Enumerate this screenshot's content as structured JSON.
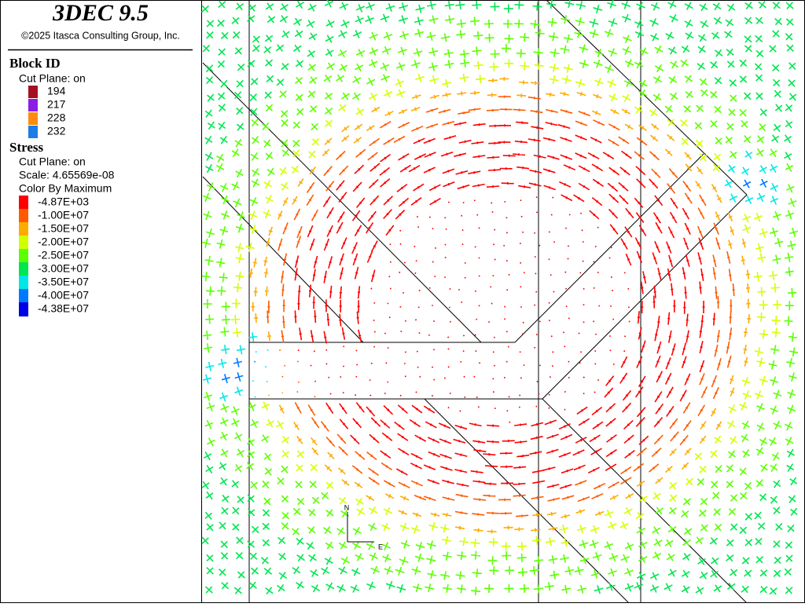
{
  "header": {
    "title": "3DEC 9.5",
    "copyright": "©2025 Itasca Consulting Group, Inc."
  },
  "block_id": {
    "title": "Block  ID",
    "subtitle": "Cut Plane: on",
    "items": [
      {
        "label": "194",
        "color": "#a50f23"
      },
      {
        "label": "217",
        "color": "#8a1ee6"
      },
      {
        "label": "228",
        "color": "#ff8a10"
      },
      {
        "label": "232",
        "color": "#1a7ee6"
      }
    ]
  },
  "stress": {
    "title": "Stress",
    "lines": [
      "Cut Plane: on",
      "Scale: 4.65569e-08",
      "Color By Maximum"
    ],
    "items": [
      {
        "label": "-4.87E+03",
        "color": "#ff0000"
      },
      {
        "label": "-1.00E+07",
        "color": "#ff5a00"
      },
      {
        "label": "-1.50E+07",
        "color": "#ffaa00"
      },
      {
        "label": "-2.00E+07",
        "color": "#d2ff00"
      },
      {
        "label": "-2.50E+07",
        "color": "#5aff00"
      },
      {
        "label": "-3.00E+07",
        "color": "#00e650"
      },
      {
        "label": "-3.50E+07",
        "color": "#00e6e6"
      },
      {
        "label": "-4.00E+07",
        "color": "#0078ff"
      },
      {
        "label": "-4.38E+07",
        "color": "#0000e6"
      }
    ]
  },
  "compass": {
    "north": "N",
    "east": "E"
  }
}
